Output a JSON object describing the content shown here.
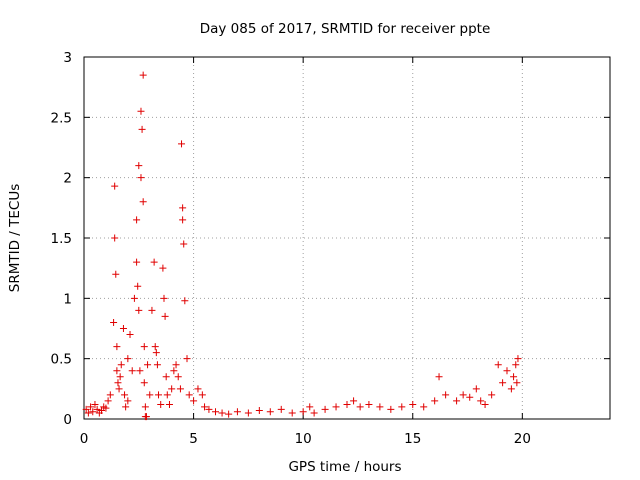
{
  "chart_data": {
    "type": "scatter",
    "title": "Day 085 of 2017, SRMTID for receiver ppte",
    "xlabel": "GPS time / hours",
    "ylabel": "SRMTID / TECUs",
    "xlim": [
      0,
      24
    ],
    "ylim": [
      0,
      3
    ],
    "xticks": [
      0,
      5,
      10,
      15,
      20
    ],
    "yticks": [
      0,
      0.5,
      1,
      1.5,
      2,
      2.5,
      3
    ],
    "xtick_labels": [
      "0",
      "5",
      "10",
      "15",
      "20"
    ],
    "ytick_labels": [
      "0",
      "0.5",
      "1",
      "1.5",
      "2",
      "2.5",
      "3"
    ],
    "grid": true,
    "marker": "+",
    "series": [
      {
        "name": "SRMTID",
        "color": "#e00000",
        "x": [
          0.1,
          0.2,
          0.3,
          0.4,
          0.5,
          0.6,
          0.7,
          0.8,
          0.9,
          1.0,
          1.1,
          1.2,
          1.35,
          1.4,
          1.4,
          1.45,
          1.5,
          1.5,
          1.55,
          1.6,
          1.65,
          1.7,
          1.8,
          1.85,
          1.9,
          2.0,
          2.0,
          2.1,
          2.2,
          2.3,
          2.4,
          2.4,
          2.45,
          2.5,
          2.5,
          2.55,
          2.6,
          2.6,
          2.65,
          2.7,
          2.7,
          2.75,
          2.75,
          2.8,
          2.8,
          2.85,
          2.9,
          3.0,
          3.1,
          3.2,
          3.25,
          3.3,
          3.35,
          3.4,
          3.5,
          3.6,
          3.65,
          3.7,
          3.75,
          3.8,
          3.9,
          4.0,
          4.1,
          4.2,
          4.3,
          4.4,
          4.45,
          4.5,
          4.5,
          4.55,
          4.6,
          4.7,
          4.8,
          5.0,
          5.2,
          5.4,
          5.5,
          5.7,
          6.0,
          6.3,
          6.6,
          7.0,
          7.5,
          8.0,
          8.5,
          9.0,
          9.5,
          10.0,
          10.3,
          10.5,
          11.0,
          11.5,
          12.0,
          12.3,
          12.6,
          13.0,
          13.5,
          14.0,
          14.5,
          15.0,
          15.5,
          16.0,
          16.2,
          16.5,
          17.0,
          17.3,
          17.6,
          17.9,
          18.1,
          18.3,
          18.6,
          18.9,
          19.1,
          19.3,
          19.5,
          19.6,
          19.7,
          19.75,
          19.8
        ],
        "y": [
          0.08,
          0.05,
          0.1,
          0.06,
          0.12,
          0.08,
          0.05,
          0.07,
          0.1,
          0.09,
          0.15,
          0.2,
          0.8,
          1.93,
          1.5,
          1.2,
          0.6,
          0.4,
          0.3,
          0.25,
          0.35,
          0.45,
          0.75,
          0.2,
          0.1,
          0.5,
          0.15,
          0.7,
          0.4,
          1.0,
          1.65,
          1.3,
          1.1,
          2.1,
          0.9,
          0.4,
          2.55,
          2.0,
          2.4,
          2.85,
          1.8,
          0.6,
          0.3,
          0.1,
          0.02,
          0.02,
          0.45,
          0.2,
          0.9,
          1.3,
          0.6,
          0.55,
          0.45,
          0.2,
          0.12,
          1.25,
          1.0,
          0.85,
          0.35,
          0.2,
          0.12,
          0.25,
          0.4,
          0.45,
          0.35,
          0.25,
          2.28,
          1.75,
          1.65,
          1.45,
          0.98,
          0.5,
          0.2,
          0.15,
          0.25,
          0.2,
          0.1,
          0.08,
          0.06,
          0.05,
          0.04,
          0.06,
          0.05,
          0.07,
          0.06,
          0.08,
          0.05,
          0.06,
          0.1,
          0.05,
          0.08,
          0.1,
          0.12,
          0.15,
          0.1,
          0.12,
          0.1,
          0.08,
          0.1,
          0.12,
          0.1,
          0.15,
          0.35,
          0.2,
          0.15,
          0.2,
          0.18,
          0.25,
          0.15,
          0.12,
          0.2,
          0.45,
          0.3,
          0.4,
          0.25,
          0.35,
          0.45,
          0.3,
          0.5
        ]
      }
    ]
  }
}
